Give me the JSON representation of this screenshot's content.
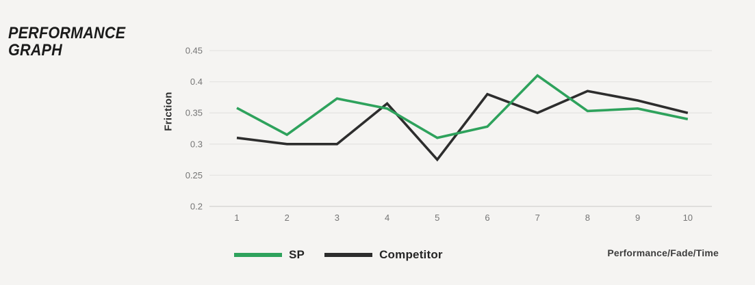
{
  "title": {
    "line1": "PERFORMANCE",
    "line2": "GRAPH"
  },
  "chart_data": {
    "type": "line",
    "x": [
      1,
      2,
      3,
      4,
      5,
      6,
      7,
      8,
      9,
      10
    ],
    "series": [
      {
        "name": "SP",
        "color": "#2ea25c",
        "values": [
          0.358,
          0.315,
          0.373,
          0.357,
          0.31,
          0.328,
          0.41,
          0.353,
          0.357,
          0.34
        ]
      },
      {
        "name": "Competitor",
        "color": "#2d2d2d",
        "values": [
          0.31,
          0.3,
          0.3,
          0.365,
          0.275,
          0.38,
          0.35,
          0.385,
          0.37,
          0.35
        ]
      }
    ],
    "title": "PERFORMANCE GRAPH",
    "xlabel": "Performance/Fade/Time",
    "ylabel": "Friction",
    "ylim": [
      0.2,
      0.45
    ],
    "yticks": [
      0.2,
      0.25,
      0.3,
      0.35,
      0.4,
      0.45
    ],
    "grid": true,
    "legend_position": "bottom"
  },
  "legend": {
    "sp_label": "SP",
    "competitor_label": "Competitor"
  },
  "footer": {
    "axis_note": "Performance/Fade/Time"
  },
  "colors": {
    "background": "#f5f4f2",
    "grid": "#e5e4e2",
    "axis_line": "#d2d1cf",
    "tick_text": "#757575",
    "title_text": "#1b1b1b",
    "sp_green": "#2ea25c",
    "competitor_black": "#2d2d2d"
  }
}
